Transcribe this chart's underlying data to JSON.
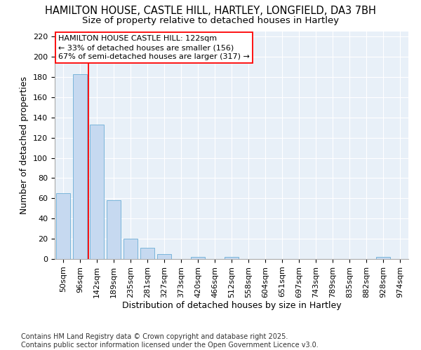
{
  "title1": "HAMILTON HOUSE, CASTLE HILL, HARTLEY, LONGFIELD, DA3 7BH",
  "title2": "Size of property relative to detached houses in Hartley",
  "xlabel": "Distribution of detached houses by size in Hartley",
  "ylabel": "Number of detached properties",
  "categories": [
    "50sqm",
    "96sqm",
    "142sqm",
    "189sqm",
    "235sqm",
    "281sqm",
    "327sqm",
    "373sqm",
    "420sqm",
    "466sqm",
    "512sqm",
    "558sqm",
    "604sqm",
    "651sqm",
    "697sqm",
    "743sqm",
    "789sqm",
    "835sqm",
    "882sqm",
    "928sqm",
    "974sqm"
  ],
  "values": [
    65,
    183,
    133,
    58,
    20,
    11,
    5,
    0,
    2,
    0,
    2,
    0,
    0,
    0,
    0,
    0,
    0,
    0,
    0,
    2,
    0
  ],
  "bar_color": "#c6d9f0",
  "bar_edge_color": "#6baed6",
  "vline_x_index": 1.5,
  "vline_label": "HAMILTON HOUSE CASTLE HILL: 122sqm",
  "annotation_line1": "← 33% of detached houses are smaller (156)",
  "annotation_line2": "67% of semi-detached houses are larger (317) →",
  "box_color": "white",
  "box_edge_color": "red",
  "ylim": [
    0,
    225
  ],
  "yticks": [
    0,
    20,
    40,
    60,
    80,
    100,
    120,
    140,
    160,
    180,
    200,
    220
  ],
  "footer1": "Contains HM Land Registry data © Crown copyright and database right 2025.",
  "footer2": "Contains public sector information licensed under the Open Government Licence v3.0.",
  "bg_color": "#e8f0f8",
  "title_fontsize": 10.5,
  "subtitle_fontsize": 9.5,
  "axis_label_fontsize": 9,
  "tick_fontsize": 8,
  "annotation_fontsize": 8,
  "footer_fontsize": 7
}
